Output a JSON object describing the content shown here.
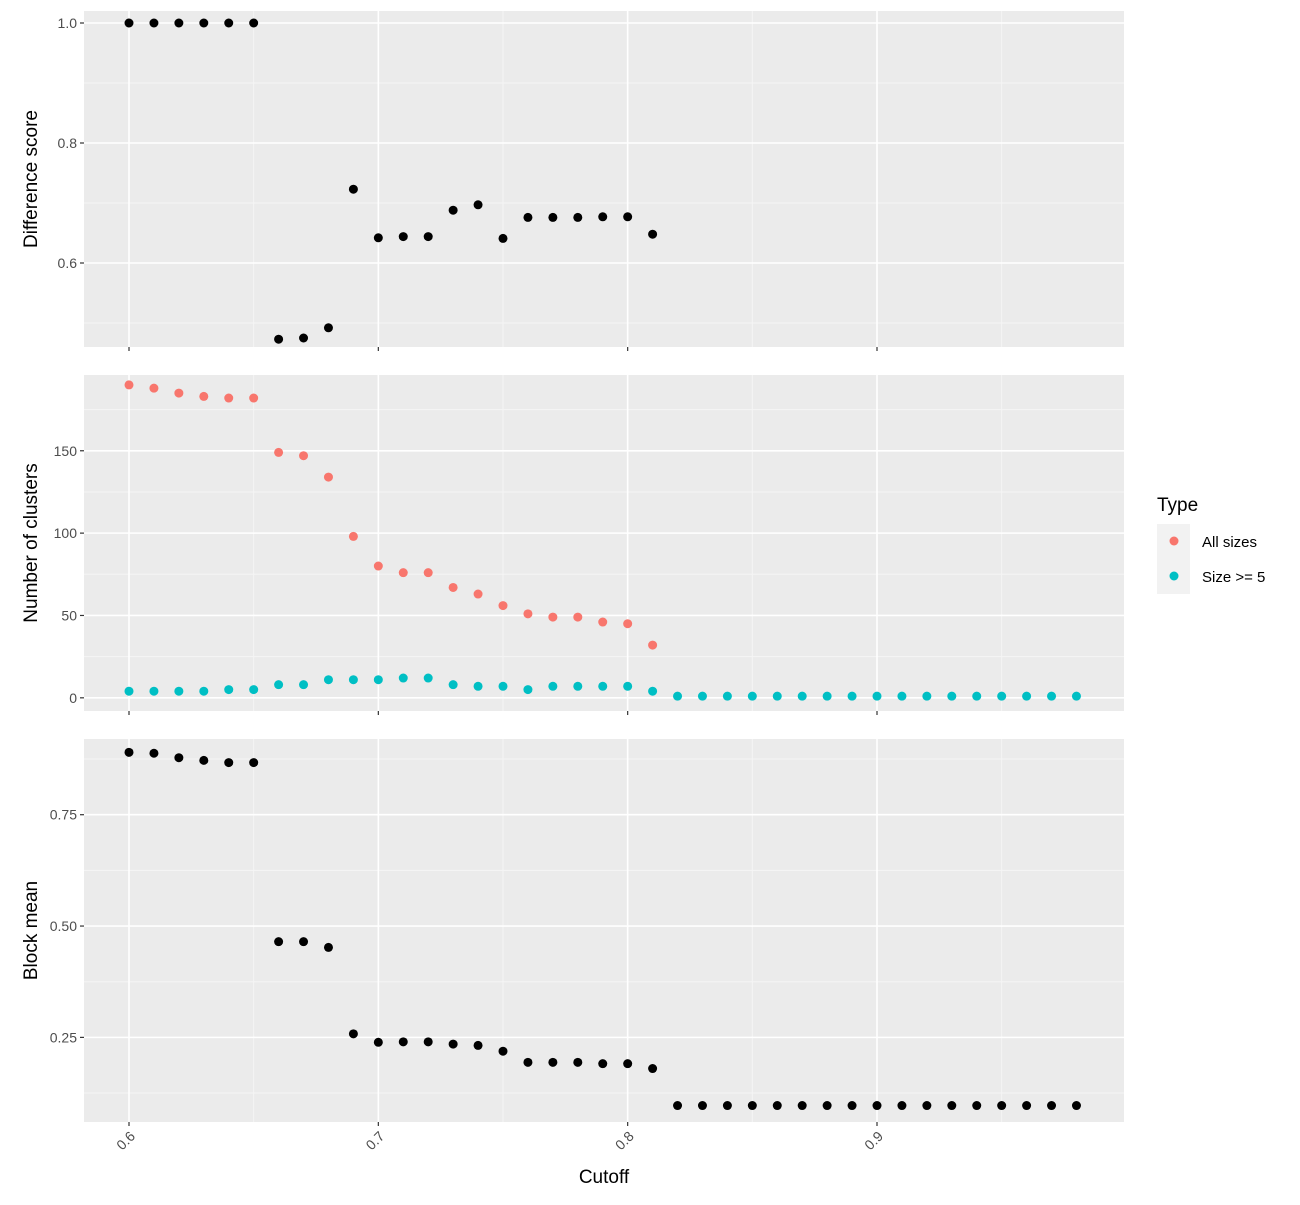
{
  "chart_data": [
    {
      "type": "scatter",
      "panel": "top",
      "xlabel": "",
      "ylabel": "Difference score",
      "xlim": [
        0.6,
        0.98
      ],
      "ylim": [
        0.46,
        1.02
      ],
      "yticks": [
        0.6,
        0.8,
        1.0
      ],
      "ytick_labels": [
        "0.6",
        "0.8",
        "1.0"
      ],
      "grid": true,
      "series": [
        {
          "color": "#000000",
          "x": [
            0.6,
            0.61,
            0.62,
            0.63,
            0.64,
            0.65,
            0.66,
            0.67,
            0.68,
            0.69,
            0.7,
            0.71,
            0.72,
            0.73,
            0.74,
            0.75,
            0.76,
            0.77,
            0.78,
            0.79,
            0.8,
            0.81
          ],
          "y": [
            1.0,
            1.0,
            1.0,
            1.0,
            1.0,
            1.0,
            0.473,
            0.475,
            0.492,
            0.723,
            0.642,
            0.644,
            0.644,
            0.688,
            0.697,
            0.641,
            0.676,
            0.676,
            0.676,
            0.677,
            0.677,
            0.648
          ]
        }
      ]
    },
    {
      "type": "scatter",
      "panel": "middle",
      "xlabel": "",
      "ylabel": "Number of clusters",
      "xlim": [
        0.6,
        0.98
      ],
      "ylim": [
        -8,
        196
      ],
      "yticks": [
        0,
        50,
        100,
        150
      ],
      "ytick_labels": [
        "0",
        "50",
        "100",
        "150"
      ],
      "grid": true,
      "series": [
        {
          "name": "All sizes",
          "color": "#F8766D",
          "x": [
            0.6,
            0.61,
            0.62,
            0.63,
            0.64,
            0.65,
            0.66,
            0.67,
            0.68,
            0.69,
            0.7,
            0.71,
            0.72,
            0.73,
            0.74,
            0.75,
            0.76,
            0.77,
            0.78,
            0.79,
            0.8,
            0.81
          ],
          "y": [
            190,
            188,
            185,
            183,
            182,
            182,
            149,
            147,
            134,
            98,
            80,
            76,
            76,
            67,
            63,
            56,
            51,
            49,
            49,
            46,
            45,
            32
          ]
        },
        {
          "name": "Size >= 5",
          "color": "#00BFC4",
          "x": [
            0.6,
            0.61,
            0.62,
            0.63,
            0.64,
            0.65,
            0.66,
            0.67,
            0.68,
            0.69,
            0.7,
            0.71,
            0.72,
            0.73,
            0.74,
            0.75,
            0.76,
            0.77,
            0.78,
            0.79,
            0.8,
            0.81,
            0.82,
            0.83,
            0.84,
            0.85,
            0.86,
            0.87,
            0.88,
            0.89,
            0.9,
            0.91,
            0.92,
            0.93,
            0.94,
            0.95,
            0.96,
            0.97,
            0.98
          ],
          "y": [
            4,
            4,
            4,
            4,
            5,
            5,
            8,
            8,
            11,
            11,
            11,
            12,
            12,
            8,
            7,
            7,
            5,
            7,
            7,
            7,
            7,
            4,
            1,
            1,
            1,
            1,
            1,
            1,
            1,
            1,
            1,
            1,
            1,
            1,
            1,
            1,
            1,
            1,
            1
          ]
        }
      ]
    },
    {
      "type": "scatter",
      "panel": "bottom",
      "xlabel": "Cutoff",
      "ylabel": "Block mean",
      "xlim": [
        0.6,
        0.98
      ],
      "ylim": [
        0.06,
        0.92
      ],
      "yticks": [
        0.25,
        0.5,
        0.75
      ],
      "ytick_labels": [
        "0.25",
        "0.50",
        "0.75"
      ],
      "xticks": [
        0.6,
        0.7,
        0.8,
        0.9
      ],
      "xtick_labels": [
        "0.6",
        "0.7",
        "0.8",
        "0.9"
      ],
      "grid": true,
      "series": [
        {
          "color": "#000000",
          "x": [
            0.6,
            0.61,
            0.62,
            0.63,
            0.64,
            0.65,
            0.66,
            0.67,
            0.68,
            0.69,
            0.7,
            0.71,
            0.72,
            0.73,
            0.74,
            0.75,
            0.76,
            0.77,
            0.78,
            0.79,
            0.8,
            0.81,
            0.82,
            0.83,
            0.84,
            0.85,
            0.86,
            0.87,
            0.88,
            0.89,
            0.9,
            0.91,
            0.92,
            0.93,
            0.94,
            0.95,
            0.96,
            0.97,
            0.98
          ],
          "y": [
            0.89,
            0.888,
            0.878,
            0.872,
            0.867,
            0.867,
            0.465,
            0.465,
            0.452,
            0.258,
            0.239,
            0.24,
            0.24,
            0.235,
            0.232,
            0.219,
            0.194,
            0.194,
            0.194,
            0.191,
            0.191,
            0.18,
            0.097,
            0.097,
            0.097,
            0.097,
            0.097,
            0.097,
            0.097,
            0.097,
            0.097,
            0.097,
            0.097,
            0.097,
            0.097,
            0.097,
            0.097,
            0.097,
            0.097
          ]
        }
      ]
    }
  ],
  "legend": {
    "title": "Type",
    "placement": "right",
    "items": [
      {
        "label": "All sizes",
        "color": "#F8766D"
      },
      {
        "label": "Size >= 5",
        "color": "#00BFC4"
      }
    ]
  },
  "colors": {
    "panel_bg": "#EBEBEB",
    "grid_major": "#FFFFFF",
    "grid_minor": "#F5F5F5",
    "tick": "#333333"
  }
}
